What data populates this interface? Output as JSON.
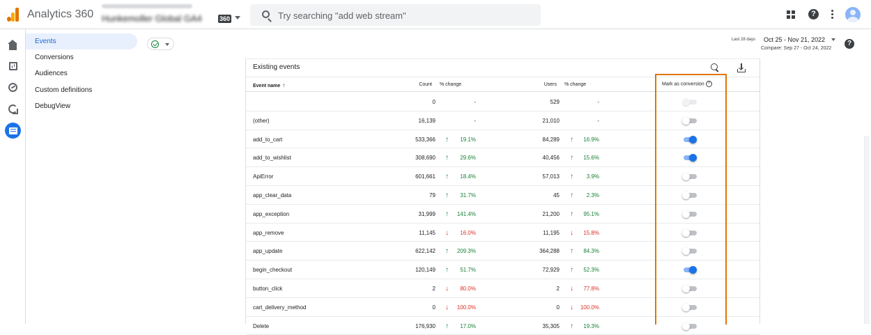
{
  "header": {
    "app_title": "Analytics 360",
    "account_line1": "xxxxxxxxxxxxxxxx",
    "account_name": "Hunkemoller Global GA4",
    "account_badge": "360",
    "search_placeholder": "Try searching \"add web stream\"",
    "icons": [
      "apps-grid-icon",
      "help-icon",
      "more-vert-icon",
      "avatar"
    ]
  },
  "rail": {
    "items": [
      "home-icon",
      "reports-icon",
      "explore-icon",
      "advertising-icon",
      "configure-icon"
    ],
    "active": "configure-icon"
  },
  "sidebar": {
    "items": [
      {
        "label": "Events",
        "active": true
      },
      {
        "label": "Conversions",
        "active": false
      },
      {
        "label": "Audiences",
        "active": false
      },
      {
        "label": "Custom definitions",
        "active": false
      },
      {
        "label": "DebugView",
        "active": false
      }
    ]
  },
  "date": {
    "hint": "Last 28 days",
    "range": "Oct 25 - Nov 21, 2022",
    "compare": "Compare: Sep 27 - Oct 24, 2022"
  },
  "table": {
    "title": "Existing events",
    "headers": {
      "event_name": "Event name",
      "count": "Count",
      "count_change": "% change",
      "users": "Users",
      "users_change": "% change",
      "conversion": "Mark as conversion"
    },
    "rows": [
      {
        "name": "",
        "count": "0",
        "count_change": "-",
        "count_dir": "none",
        "users": "529",
        "users_change": "-",
        "users_dir": "none",
        "conversion": "disabled"
      },
      {
        "name": "(other)",
        "count": "16,139",
        "count_change": "-",
        "count_dir": "none",
        "users": "21,010",
        "users_change": "-",
        "users_dir": "none",
        "conversion": "off"
      },
      {
        "name": "add_to_cart",
        "count": "533,366",
        "count_change": "19.1%",
        "count_dir": "up",
        "users": "84,289",
        "users_change": "16.9%",
        "users_dir": "up",
        "conversion": "on"
      },
      {
        "name": "add_to_wishlist",
        "count": "308,690",
        "count_change": "29.6%",
        "count_dir": "up",
        "users": "40,456",
        "users_change": "15.6%",
        "users_dir": "up",
        "conversion": "on"
      },
      {
        "name": "ApiError",
        "count": "601,661",
        "count_change": "18.4%",
        "count_dir": "up",
        "users": "57,013",
        "users_change": "3.9%",
        "users_dir": "up",
        "conversion": "off"
      },
      {
        "name": "app_clear_data",
        "count": "79",
        "count_change": "31.7%",
        "count_dir": "up",
        "users": "45",
        "users_change": "2.3%",
        "users_dir": "up",
        "conversion": "off"
      },
      {
        "name": "app_exception",
        "count": "31,999",
        "count_change": "141.4%",
        "count_dir": "up",
        "users": "21,200",
        "users_change": "95.1%",
        "users_dir": "up",
        "conversion": "off"
      },
      {
        "name": "app_remove",
        "count": "11,145",
        "count_change": "16.0%",
        "count_dir": "down",
        "users": "11,195",
        "users_change": "15.8%",
        "users_dir": "down",
        "conversion": "off"
      },
      {
        "name": "app_update",
        "count": "622,142",
        "count_change": "209.3%",
        "count_dir": "up",
        "users": "364,288",
        "users_change": "84.3%",
        "users_dir": "up",
        "conversion": "off"
      },
      {
        "name": "begin_checkout",
        "count": "120,149",
        "count_change": "51.7%",
        "count_dir": "up",
        "users": "72,929",
        "users_change": "52.3%",
        "users_dir": "up",
        "conversion": "on"
      },
      {
        "name": "button_click",
        "count": "2",
        "count_change": "80.0%",
        "count_dir": "down",
        "users": "2",
        "users_change": "77.8%",
        "users_dir": "down",
        "conversion": "off"
      },
      {
        "name": "cart_delivery_method",
        "count": "0",
        "count_change": "100.0%",
        "count_dir": "down",
        "users": "0",
        "users_change": "100.0%",
        "users_dir": "down",
        "conversion": "off"
      },
      {
        "name": "Delete",
        "count": "176,930",
        "count_change": "17.0%",
        "count_dir": "up",
        "users": "35,305",
        "users_change": "19.3%",
        "users_dir": "up",
        "conversion": "off"
      }
    ]
  },
  "colors": {
    "highlight_border": "#e37400",
    "positive": "#188038",
    "negative": "#d93025",
    "toggle_on": "#1a73e8",
    "active_nav_bg": "#e8f0fe"
  }
}
